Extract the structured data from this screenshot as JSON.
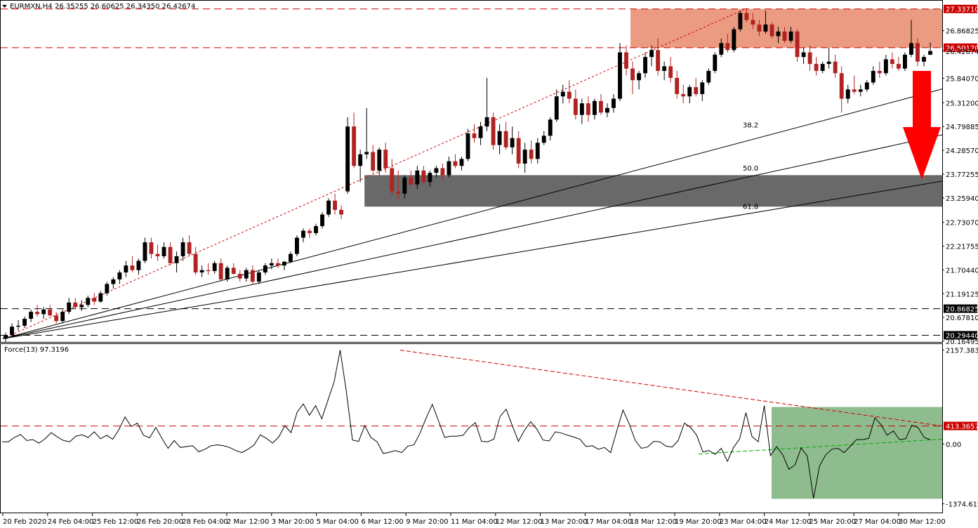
{
  "header": {
    "symbol": "EURMXN,H4",
    "ohlc": "26.35255 26.60625 26.34350 26.42674",
    "indicator": "Force(13) 97.3196"
  },
  "colors": {
    "bull": "#000000",
    "bear": "#b22222",
    "resistance_zone": "#e9967a",
    "support_zone": "#696969",
    "force_zone": "#8fbc8f",
    "arrow": "#ff0000",
    "level_line": "#cc0000",
    "tag_red": "#cc0000",
    "tag_black": "#000000"
  },
  "chart_data": [
    {
      "type": "candlestick",
      "symbol": "EURMXN",
      "timeframe": "H4",
      "ylim": [
        20.16495,
        27.5
      ],
      "y_ticks": [
        "27.33710",
        "26.86825",
        "26.50170",
        "26.42674",
        "25.84070",
        "25.31200",
        "24.79885",
        "24.28570",
        "23.77255",
        "23.25940",
        "22.73070",
        "22.21755",
        "21.70440",
        "21.19125",
        "20.86825",
        "20.67810",
        "20.29440",
        "20.16495"
      ],
      "x_ticks": [
        "20 Feb 2020",
        "24 Feb 04:00",
        "25 Feb 12:00",
        "26 Feb 20:00",
        "28 Feb 04:00",
        "2 Mar 12:00",
        "3 Mar 20:00",
        "5 Mar 04:00",
        "6 Mar 12:00",
        "9 Mar 20:00",
        "11 Mar 04:00",
        "12 Mar 12:00",
        "13 Mar 20:00",
        "17 Mar 04:00",
        "18 Mar 12:00",
        "19 Mar 20:00",
        "23 Mar 04:00",
        "24 Mar 12:00",
        "25 Mar 20:00",
        "27 Mar 04:00",
        "30 Mar 12:00"
      ],
      "levels": [
        {
          "value": 27.3371,
          "label": "27.33710",
          "style": "dashed",
          "tag": "red"
        },
        {
          "value": 26.5017,
          "label": "26.50170",
          "style": "dashed",
          "tag": "red"
        },
        {
          "value": 20.86825,
          "label": "20.86825",
          "style": "dashed",
          "tag": "black"
        },
        {
          "value": 20.2944,
          "label": "20.29440",
          "style": "dashed",
          "tag": "black"
        }
      ],
      "resistance_zone": [
        26.5017,
        27.3371
      ],
      "support_zone": [
        23.07,
        23.75
      ],
      "fib_fan_labels": [
        "38.2",
        "50.0",
        "61.8"
      ],
      "candles": [
        [
          20.22,
          20.35,
          20.15,
          20.3
        ],
        [
          20.3,
          20.55,
          20.25,
          20.48
        ],
        [
          20.48,
          20.62,
          20.4,
          20.5
        ],
        [
          20.5,
          20.7,
          20.45,
          20.65
        ],
        [
          20.65,
          20.85,
          20.58,
          20.8
        ],
        [
          20.8,
          20.95,
          20.7,
          20.75
        ],
        [
          20.75,
          20.9,
          20.65,
          20.85
        ],
        [
          20.85,
          20.95,
          20.7,
          20.72
        ],
        [
          20.72,
          20.8,
          20.55,
          20.6
        ],
        [
          20.6,
          20.85,
          20.55,
          20.8
        ],
        [
          20.8,
          21.1,
          20.75,
          21.0
        ],
        [
          21.0,
          21.1,
          20.85,
          20.9
        ],
        [
          20.9,
          21.05,
          20.82,
          20.95
        ],
        [
          20.95,
          21.15,
          20.9,
          21.1
        ],
        [
          21.1,
          21.2,
          20.95,
          21.02
        ],
        [
          21.02,
          21.25,
          21.0,
          21.2
        ],
        [
          21.2,
          21.45,
          21.15,
          21.4
        ],
        [
          21.4,
          21.55,
          21.3,
          21.5
        ],
        [
          21.5,
          21.7,
          21.4,
          21.65
        ],
        [
          21.65,
          21.9,
          21.55,
          21.8
        ],
        [
          21.8,
          22.0,
          21.65,
          21.7
        ],
        [
          21.7,
          21.95,
          21.6,
          21.9
        ],
        [
          21.9,
          22.4,
          21.85,
          22.3
        ],
        [
          22.3,
          22.4,
          21.95,
          22.05
        ],
        [
          22.05,
          22.25,
          21.9,
          22.0
        ],
        [
          22.0,
          22.3,
          21.95,
          22.2
        ],
        [
          22.2,
          22.3,
          21.8,
          21.85
        ],
        [
          21.85,
          22.1,
          21.65,
          22.0
        ],
        [
          22.0,
          22.4,
          21.9,
          22.3
        ],
        [
          22.3,
          22.45,
          22.0,
          22.05
        ],
        [
          22.05,
          22.2,
          21.6,
          21.65
        ],
        [
          21.65,
          21.8,
          21.55,
          21.7
        ],
        [
          21.7,
          21.85,
          21.6,
          21.68
        ],
        [
          21.68,
          21.9,
          21.62,
          21.85
        ],
        [
          21.85,
          21.95,
          21.45,
          21.5
        ],
        [
          21.5,
          21.8,
          21.45,
          21.75
        ],
        [
          21.75,
          21.85,
          21.6,
          21.62
        ],
        [
          21.62,
          21.7,
          21.45,
          21.52
        ],
        [
          21.52,
          21.75,
          21.45,
          21.7
        ],
        [
          21.7,
          21.8,
          21.4,
          21.45
        ],
        [
          21.45,
          21.7,
          21.4,
          21.65
        ],
        [
          21.65,
          21.85,
          21.6,
          21.8
        ],
        [
          21.8,
          21.95,
          21.72,
          21.85
        ],
        [
          21.85,
          21.95,
          21.75,
          21.8
        ],
        [
          21.8,
          21.9,
          21.7,
          21.88
        ],
        [
          21.88,
          22.1,
          21.85,
          22.05
        ],
        [
          22.05,
          22.45,
          22.0,
          22.4
        ],
        [
          22.4,
          22.6,
          22.3,
          22.55
        ],
        [
          22.55,
          22.6,
          22.4,
          22.5
        ],
        [
          22.5,
          22.7,
          22.45,
          22.65
        ],
        [
          22.65,
          22.95,
          22.6,
          22.9
        ],
        [
          22.9,
          23.25,
          22.85,
          23.2
        ],
        [
          23.2,
          23.35,
          22.9,
          23.0
        ],
        [
          23.0,
          23.1,
          22.8,
          22.9
        ],
        [
          23.4,
          25.0,
          23.35,
          24.8
        ],
        [
          24.8,
          25.1,
          23.9,
          23.95
        ],
        [
          23.95,
          24.3,
          23.6,
          24.2
        ],
        [
          24.2,
          25.2,
          24.1,
          24.25
        ],
        [
          24.25,
          24.4,
          23.8,
          23.85
        ],
        [
          23.85,
          24.35,
          23.75,
          24.3
        ],
        [
          24.3,
          24.45,
          23.8,
          23.9
        ],
        [
          23.9,
          24.1,
          23.3,
          23.4
        ],
        [
          23.4,
          23.85,
          23.2,
          23.35
        ],
        [
          23.35,
          23.75,
          23.25,
          23.7
        ],
        [
          23.7,
          23.85,
          23.5,
          23.55
        ],
        [
          23.55,
          23.95,
          23.45,
          23.85
        ],
        [
          23.85,
          23.95,
          23.55,
          23.6
        ],
        [
          23.6,
          23.85,
          23.5,
          23.8
        ],
        [
          23.8,
          23.95,
          23.7,
          23.9
        ],
        [
          23.9,
          24.0,
          23.65,
          23.75
        ],
        [
          23.75,
          24.15,
          23.7,
          24.05
        ],
        [
          24.05,
          24.2,
          23.9,
          23.95
        ],
        [
          23.95,
          24.15,
          23.85,
          24.1
        ],
        [
          24.1,
          24.75,
          24.05,
          24.65
        ],
        [
          24.65,
          24.85,
          24.45,
          24.55
        ],
        [
          24.55,
          24.9,
          24.4,
          24.8
        ],
        [
          24.8,
          25.85,
          24.7,
          25.0
        ],
        [
          25.0,
          25.1,
          24.3,
          24.4
        ],
        [
          24.4,
          24.85,
          24.2,
          24.7
        ],
        [
          24.7,
          24.9,
          24.3,
          24.35
        ],
        [
          24.35,
          24.8,
          24.2,
          24.55
        ],
        [
          24.55,
          24.7,
          23.9,
          24.0
        ],
        [
          24.0,
          24.45,
          23.8,
          24.3
        ],
        [
          24.3,
          24.5,
          24.0,
          24.1
        ],
        [
          24.1,
          24.55,
          24.0,
          24.45
        ],
        [
          24.45,
          24.7,
          24.4,
          24.6
        ],
        [
          24.6,
          25.0,
          24.5,
          24.95
        ],
        [
          24.95,
          25.6,
          24.9,
          25.45
        ],
        [
          25.45,
          25.7,
          25.3,
          25.55
        ],
        [
          25.55,
          25.8,
          25.3,
          25.4
        ],
        [
          25.4,
          25.6,
          24.95,
          25.05
        ],
        [
          25.05,
          25.4,
          24.85,
          25.3
        ],
        [
          25.3,
          25.45,
          24.9,
          25.05
        ],
        [
          25.05,
          25.4,
          24.95,
          25.35
        ],
        [
          25.35,
          25.5,
          25.05,
          25.1
        ],
        [
          25.1,
          25.3,
          25.0,
          25.2
        ],
        [
          25.2,
          25.5,
          25.1,
          25.4
        ],
        [
          25.4,
          26.6,
          25.35,
          26.4
        ],
        [
          26.4,
          26.55,
          25.9,
          26.05
        ],
        [
          26.05,
          26.2,
          25.5,
          25.8
        ],
        [
          25.8,
          26.0,
          25.6,
          25.95
        ],
        [
          25.95,
          26.4,
          25.85,
          26.3
        ],
        [
          26.3,
          26.55,
          26.1,
          26.45
        ],
        [
          26.45,
          26.7,
          25.9,
          26.0
        ],
        [
          26.0,
          26.2,
          25.8,
          26.1
        ],
        [
          26.1,
          26.3,
          25.75,
          25.85
        ],
        [
          25.85,
          26.0,
          25.4,
          25.5
        ],
        [
          25.5,
          25.7,
          25.3,
          25.45
        ],
        [
          25.45,
          25.7,
          25.3,
          25.65
        ],
        [
          25.65,
          25.85,
          25.45,
          25.5
        ],
        [
          25.5,
          25.8,
          25.35,
          25.75
        ],
        [
          25.75,
          26.05,
          25.7,
          26.0
        ],
        [
          26.0,
          26.4,
          25.95,
          26.35
        ],
        [
          26.35,
          26.7,
          26.3,
          26.6
        ],
        [
          26.6,
          26.8,
          26.4,
          26.45
        ],
        [
          26.45,
          26.95,
          26.4,
          26.9
        ],
        [
          26.9,
          27.3,
          26.85,
          27.25
        ],
        [
          27.25,
          27.35,
          27.05,
          27.1
        ],
        [
          27.1,
          27.25,
          26.9,
          27.0
        ],
        [
          27.0,
          27.1,
          26.75,
          26.85
        ],
        [
          26.85,
          27.3,
          26.8,
          27.0
        ],
        [
          27.0,
          27.05,
          26.7,
          26.75
        ],
        [
          26.75,
          26.95,
          26.6,
          26.85
        ],
        [
          26.85,
          26.95,
          26.6,
          26.65
        ],
        [
          26.65,
          26.95,
          26.6,
          26.85
        ],
        [
          26.85,
          26.9,
          26.2,
          26.3
        ],
        [
          26.3,
          26.5,
          26.15,
          26.4
        ],
        [
          26.4,
          26.55,
          26.0,
          26.15
        ],
        [
          26.15,
          26.3,
          25.9,
          26.0
        ],
        [
          26.0,
          26.2,
          25.95,
          26.15
        ],
        [
          26.15,
          26.5,
          26.05,
          26.2
        ],
        [
          26.2,
          26.35,
          25.85,
          25.95
        ],
        [
          25.95,
          26.1,
          25.1,
          25.4
        ],
        [
          25.4,
          25.7,
          25.3,
          25.6
        ],
        [
          25.6,
          25.9,
          25.5,
          25.55
        ],
        [
          25.55,
          25.7,
          25.45,
          25.6
        ],
        [
          25.6,
          25.8,
          25.55,
          25.75
        ],
        [
          25.75,
          26.1,
          25.7,
          26.0
        ],
        [
          26.0,
          26.2,
          25.85,
          25.95
        ],
        [
          25.95,
          26.35,
          25.9,
          26.25
        ],
        [
          26.25,
          26.4,
          26.05,
          26.15
        ],
        [
          26.15,
          26.3,
          26.0,
          26.05
        ],
        [
          26.05,
          26.4,
          26.0,
          26.35
        ],
        [
          26.35,
          27.1,
          26.3,
          26.6
        ],
        [
          26.6,
          26.7,
          26.1,
          26.2
        ],
        [
          26.2,
          26.35,
          26.1,
          26.3
        ],
        [
          26.35,
          26.61,
          26.34,
          26.43
        ]
      ],
      "arrow": {
        "from": 26.0,
        "to": 23.65,
        "direction": "down"
      }
    },
    {
      "type": "line",
      "name": "Force(13)",
      "ylim": [
        -1560,
        2280
      ],
      "y_ticks": [
        "2157.3838",
        "413.3657",
        "0.00",
        "-1374.6192"
      ],
      "levels": [
        {
          "value": 413.3657,
          "label": "413.3657",
          "tag": "red"
        }
      ],
      "zone": {
        "x_from": 122,
        "x_to": 148,
        "y_from": -1260,
        "y_to": 850
      },
      "trendlines": [
        {
          "color": "#cc0000",
          "dashed": true,
          "from": [
            67,
            2157
          ],
          "to": [
            148,
            413
          ]
        },
        {
          "color": "#00aa00",
          "dashed": true,
          "from": [
            111,
            -210
          ],
          "to": [
            148,
            130
          ]
        }
      ],
      "values": [
        50,
        50,
        150,
        220,
        80,
        100,
        20,
        120,
        260,
        160,
        80,
        50,
        180,
        210,
        150,
        280,
        120,
        200,
        110,
        330,
        620,
        400,
        480,
        200,
        140,
        380,
        130,
        -100,
        80,
        -80,
        -60,
        -40,
        -180,
        -120,
        -40,
        -20,
        -40,
        -80,
        -150,
        -200,
        -120,
        -20,
        210,
        130,
        20,
        160,
        420,
        260,
        730,
        920,
        660,
        880,
        580,
        1000,
        1420,
        2157,
        1210,
        90,
        60,
        420,
        150,
        50,
        -220,
        -190,
        -150,
        -200,
        -50,
        -20,
        250,
        600,
        910,
        530,
        150,
        180,
        180,
        200,
        380,
        490,
        60,
        50,
        110,
        630,
        800,
        420,
        60,
        320,
        510,
        340,
        90,
        70,
        280,
        250,
        200,
        160,
        110,
        -60,
        -40,
        -120,
        -80,
        -200,
        300,
        780,
        470,
        80,
        -100,
        -70,
        60,
        50,
        -50,
        -70,
        80,
        480,
        380,
        200,
        -180,
        -150,
        -240,
        -100,
        -400,
        -80,
        120,
        720,
        170,
        50,
        880,
        -270,
        -60,
        -250,
        -580,
        -480,
        -90,
        -280,
        -1250,
        -500,
        -250,
        -120,
        -100,
        -200,
        -50,
        100,
        100,
        130,
        600,
        440,
        200,
        300,
        100,
        120,
        430,
        380,
        150,
        97
      ]
    }
  ]
}
